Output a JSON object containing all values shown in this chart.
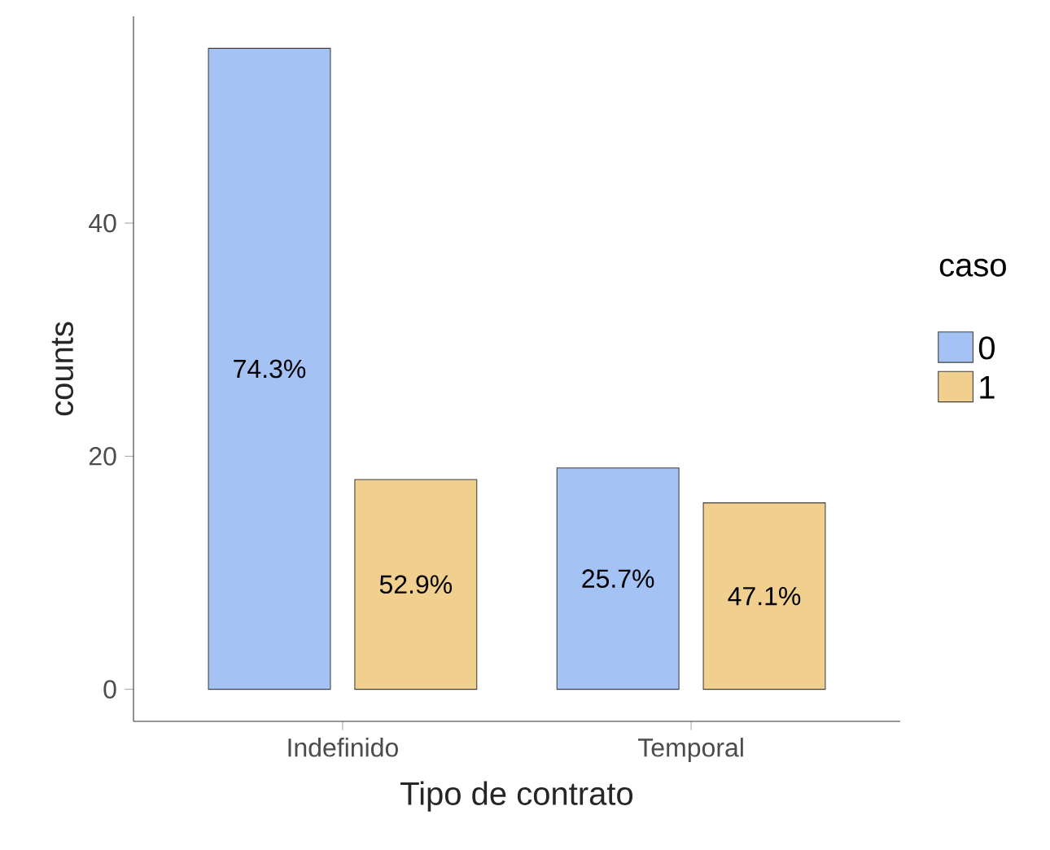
{
  "chart_data": {
    "type": "bar",
    "xlabel": "Tipo de contrato",
    "ylabel": "counts",
    "legend_title": "caso",
    "categories": [
      "Indefinido",
      "Temporal"
    ],
    "series": [
      {
        "name": "0",
        "color": "#a4c2f4",
        "values": [
          55,
          19
        ]
      },
      {
        "name": "1",
        "color": "#f0cf8f",
        "values": [
          18,
          16
        ]
      }
    ],
    "annotations": [
      "74.3%",
      "52.9%",
      "25.7%",
      "47.1%"
    ],
    "ylim": [
      -2.75,
      57.75
    ],
    "yticks": [
      0,
      20,
      40
    ],
    "grid": false,
    "legend": "right"
  }
}
